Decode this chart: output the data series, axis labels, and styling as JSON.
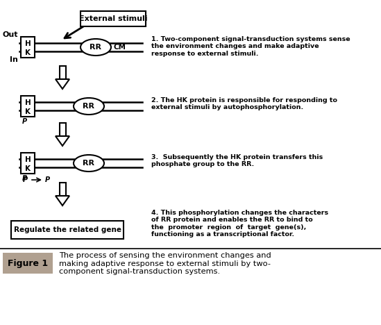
{
  "bg_color": "#ffffff",
  "fig_width": 5.49,
  "fig_height": 4.68,
  "caption_bg": "#b0a090",
  "caption_label": "Figure 1",
  "caption_text": "The process of sensing the environment changes and\nmaking adaptive response to external stimuli by two-\ncomponent signal-transduction systems.",
  "ann1": "1. Two-component signal-transduction systems sense\nthe environment changes and make adaptive\nresponse to external stimuli.",
  "ann2": "2. The HK protein is responsible for responding to\nexternal stimuli by autophosphorylation.",
  "ann3": "3.  Subsequently the HK protein transfers this\nphosphate group to the RR.",
  "ann4": "4. This phosphorylation changes the characters\nof RR protein and enables the RR to bind to\nthe  promoter  region  of  target  gene(s),\nfunctioning as a transcriptional factor."
}
